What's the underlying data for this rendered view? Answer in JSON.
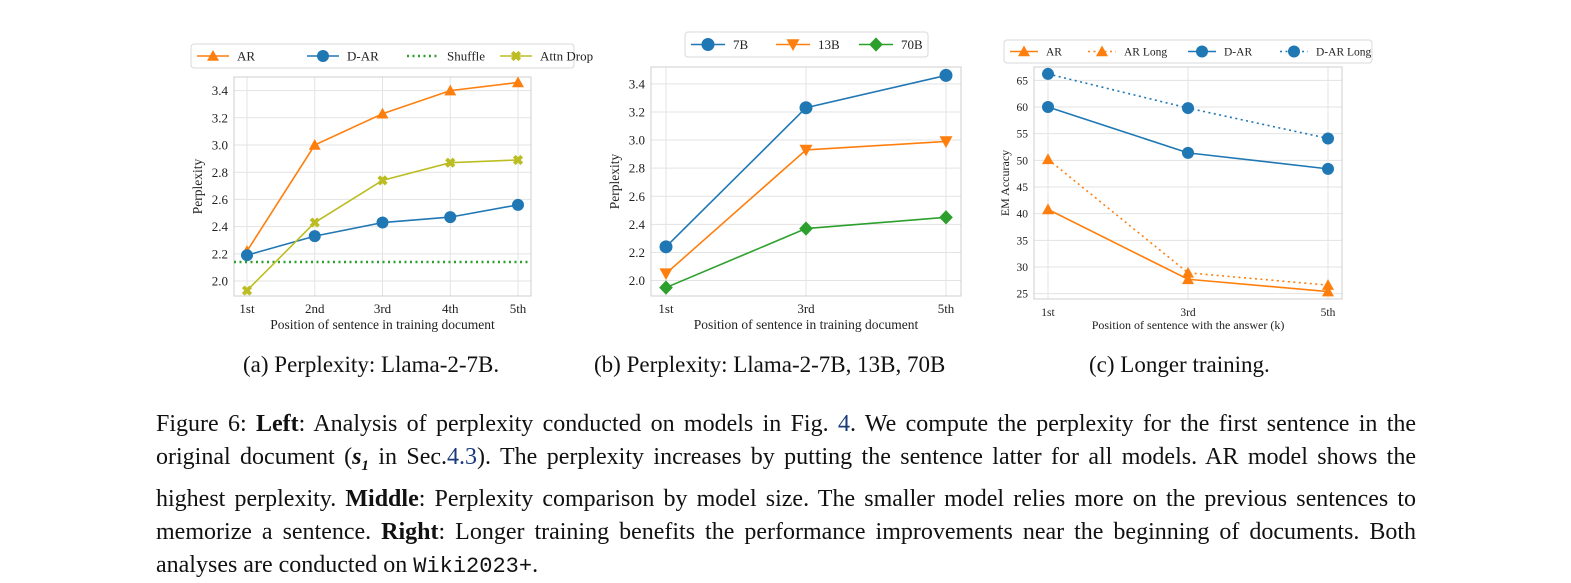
{
  "figure": {
    "subcaptions": [
      "(a) Perplexity: Llama-2-7B.",
      "(b) Perplexity: Llama-2-7B, 13B, 70B",
      "(c) Longer training."
    ],
    "caption": {
      "figure_label": "Figure 6:",
      "left_label": "Left",
      "left_text_1": ": Analysis of perplexity conducted on models in Fig.",
      "fig_ref": "4",
      "left_text_2": ". We compute the perplexity for the first sentence in the original document (",
      "math_s": "s",
      "math_sub": "1",
      "left_text_3": " in Sec.",
      "sec_ref": "4.3",
      "left_text_4": "). The perplexity increases by putting the sentence latter for all models. AR model shows the highest perplexity.",
      "middle_label": "Middle",
      "middle_text": ": Perplexity comparison by model size. The smaller model relies more on the previous sentences to memorize a sentence.",
      "right_label": "Right",
      "right_text": ": Longer training benefits the performance improvements near the beginning of documents. Both analyses are conducted on",
      "dataset": "Wiki2023+",
      "end": "."
    }
  },
  "chart_data": [
    {
      "type": "line",
      "title": "",
      "xlabel": "Position of sentence in training document",
      "ylabel": "Perplexity",
      "categories": [
        "1st",
        "2nd",
        "3rd",
        "4th",
        "5th"
      ],
      "ylim": [
        1.89,
        3.5
      ],
      "yticks": [
        "2.0",
        "2.2",
        "2.4",
        "2.6",
        "2.8",
        "3.0",
        "3.2",
        "3.4"
      ],
      "grid": true,
      "legend_position": "top",
      "series": [
        {
          "name": "AR",
          "color": "#ff7f0e",
          "marker": "triangle-up",
          "dash": "solid",
          "values": [
            2.22,
            3.0,
            3.23,
            3.4,
            3.46
          ]
        },
        {
          "name": "D-AR",
          "color": "#1f77b4",
          "marker": "circle",
          "dash": "solid",
          "values": [
            2.19,
            2.33,
            2.43,
            2.47,
            2.56
          ]
        },
        {
          "name": "Shuffle",
          "color": "#2ca02c",
          "marker": "none",
          "dash": "dotted",
          "horizontal": true,
          "values": [
            2.14,
            2.14,
            2.14,
            2.14,
            2.14
          ]
        },
        {
          "name": "Attn Drop",
          "color": "#bcbd22",
          "marker": "x",
          "dash": "solid",
          "values": [
            1.93,
            2.43,
            2.74,
            2.87,
            2.89
          ]
        }
      ]
    },
    {
      "type": "line",
      "title": "",
      "xlabel": "Position of sentence in training document",
      "ylabel": "Perplexity",
      "categories": [
        "1st",
        "3rd",
        "5th"
      ],
      "ylim": [
        1.89,
        3.52
      ],
      "yticks": [
        "2.0",
        "2.2",
        "2.4",
        "2.6",
        "2.8",
        "3.0",
        "3.2",
        "3.4"
      ],
      "grid": true,
      "legend_position": "top",
      "series": [
        {
          "name": "7B",
          "color": "#1f77b4",
          "marker": "circle",
          "dash": "solid",
          "values": [
            2.24,
            3.23,
            3.46
          ]
        },
        {
          "name": "13B",
          "color": "#ff7f0e",
          "marker": "triangle-down",
          "dash": "solid",
          "values": [
            2.05,
            2.93,
            2.99
          ]
        },
        {
          "name": "70B",
          "color": "#2ca02c",
          "marker": "diamond",
          "dash": "solid",
          "values": [
            1.95,
            2.37,
            2.45
          ]
        }
      ]
    },
    {
      "type": "line",
      "title": "",
      "xlabel": "Position of sentence with the answer (k)",
      "ylabel": "EM Accuracy",
      "categories": [
        "1st",
        "3rd",
        "5th"
      ],
      "ylim": [
        24,
        67.5
      ],
      "yticks": [
        "25",
        "30",
        "35",
        "40",
        "45",
        "50",
        "55",
        "60",
        "65"
      ],
      "grid": true,
      "legend_position": "top",
      "series": [
        {
          "name": "AR",
          "color": "#ff7f0e",
          "marker": "triangle-up",
          "dash": "solid",
          "values": [
            40.8,
            27.7,
            25.4
          ]
        },
        {
          "name": "AR Long",
          "color": "#ff7f0e",
          "marker": "triangle-up",
          "dash": "dotted",
          "values": [
            50.2,
            28.9,
            26.6
          ]
        },
        {
          "name": "D-AR",
          "color": "#1f77b4",
          "marker": "circle",
          "dash": "solid",
          "values": [
            60.0,
            51.4,
            48.4
          ]
        },
        {
          "name": "D-AR Long",
          "color": "#1f77b4",
          "marker": "circle",
          "dash": "dotted",
          "values": [
            66.2,
            59.8,
            54.1
          ]
        }
      ]
    }
  ]
}
